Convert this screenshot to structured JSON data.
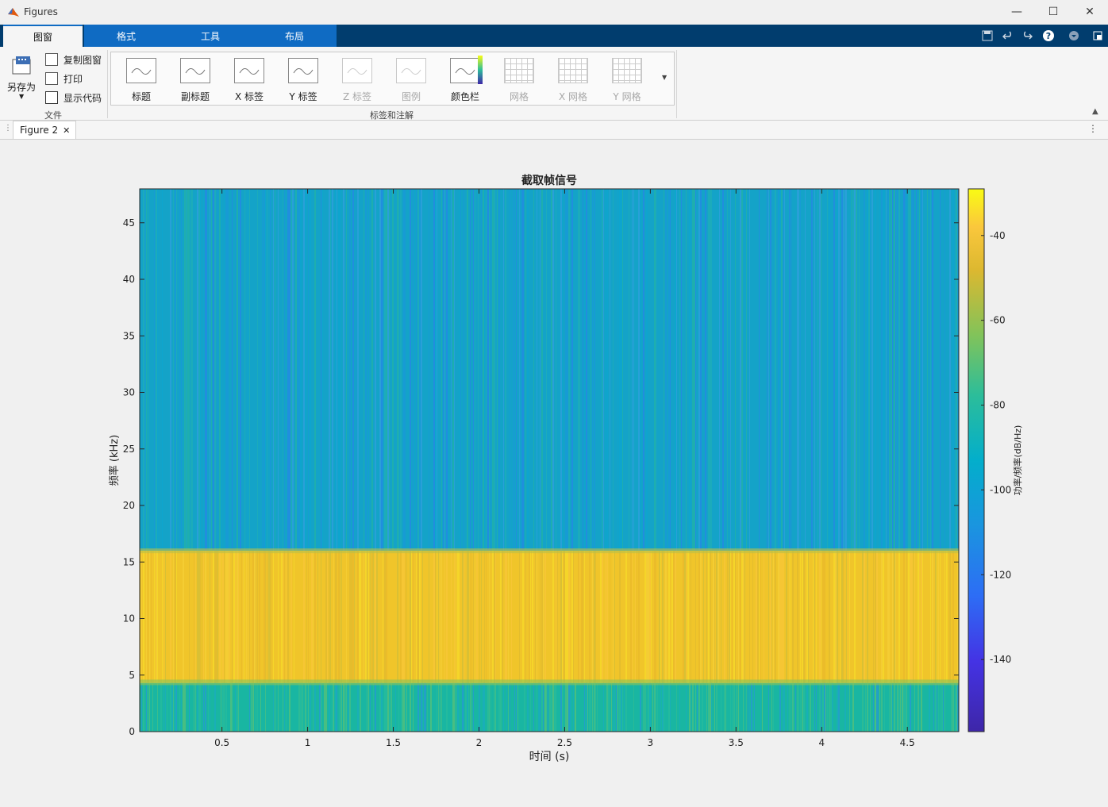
{
  "window": {
    "title": "Figures",
    "controls": [
      "—",
      "☐",
      "✕"
    ]
  },
  "ribbon_tabs": [
    {
      "label": "图窗",
      "active": true
    },
    {
      "label": "格式",
      "active": false
    },
    {
      "label": "工具",
      "active": false
    },
    {
      "label": "布局",
      "active": false
    }
  ],
  "file_group": {
    "label": "文件",
    "save_as": "另存为",
    "copy_figure": "复制图窗",
    "print": "打印",
    "show_code": "显示代码"
  },
  "labels_group": {
    "label": "标签和注解",
    "buttons": [
      {
        "label": "标题",
        "enabled": true
      },
      {
        "label": "副标题",
        "enabled": true
      },
      {
        "label": "X 标签",
        "enabled": true
      },
      {
        "label": "Y 标签",
        "enabled": true
      },
      {
        "label": "Z 标签",
        "enabled": false
      },
      {
        "label": "图例",
        "enabled": false
      },
      {
        "label": "颜色栏",
        "enabled": true
      },
      {
        "label": "网格",
        "enabled": false
      },
      {
        "label": "X 网格",
        "enabled": false
      },
      {
        "label": "Y 网格",
        "enabled": false
      }
    ]
  },
  "figure_tab": {
    "label": "Figure 2",
    "close": "✕"
  },
  "chart_data": {
    "type": "heatmap",
    "title": "截取帧信号",
    "xlabel": "时间 (s)",
    "ylabel": "频率 (kHz)",
    "colorbar_label": "功率/频率(dB/Hz)",
    "colormap": "parula",
    "xlim": [
      0.02,
      4.8
    ],
    "ylim": [
      0,
      48
    ],
    "clim": [
      -157,
      -29
    ],
    "x_ticks": [
      0.5,
      1,
      1.5,
      2,
      2.5,
      3,
      3.5,
      4,
      4.5
    ],
    "x_tick_labels": [
      "0.5",
      "1",
      "1.5",
      "2",
      "2.5",
      "3",
      "3.5",
      "4",
      "4.5"
    ],
    "y_ticks": [
      0,
      5,
      10,
      15,
      20,
      25,
      30,
      35,
      40,
      45
    ],
    "y_tick_labels": [
      "0",
      "5",
      "10",
      "15",
      "20",
      "25",
      "30",
      "35",
      "40",
      "45"
    ],
    "colorbar_ticks": [
      -40,
      -60,
      -80,
      -100,
      -120,
      -140
    ],
    "colorbar_tick_labels": [
      "-40",
      "-60",
      "-80",
      "-100",
      "-120",
      "-140"
    ],
    "bands": [
      {
        "from_khz": 0,
        "to_khz": 4.3,
        "level_db": -88
      },
      {
        "from_khz": 4.3,
        "to_khz": 16,
        "level_db": -48
      },
      {
        "from_khz": 16,
        "to_khz": 48,
        "level_db": -103
      }
    ]
  },
  "colors": {
    "tabstrip": "#013d6e",
    "active_tab_accent": "#0f6bc3",
    "band_low": "#19b6a2",
    "band_mid": "#f0c52a",
    "band_high": "#14a3c8"
  },
  "icons": {
    "app": "matlab-logo-icon",
    "save": "save-icon",
    "undo": "undo-icon",
    "redo": "redo-icon",
    "help": "help-icon",
    "dock": "dock-icon"
  }
}
